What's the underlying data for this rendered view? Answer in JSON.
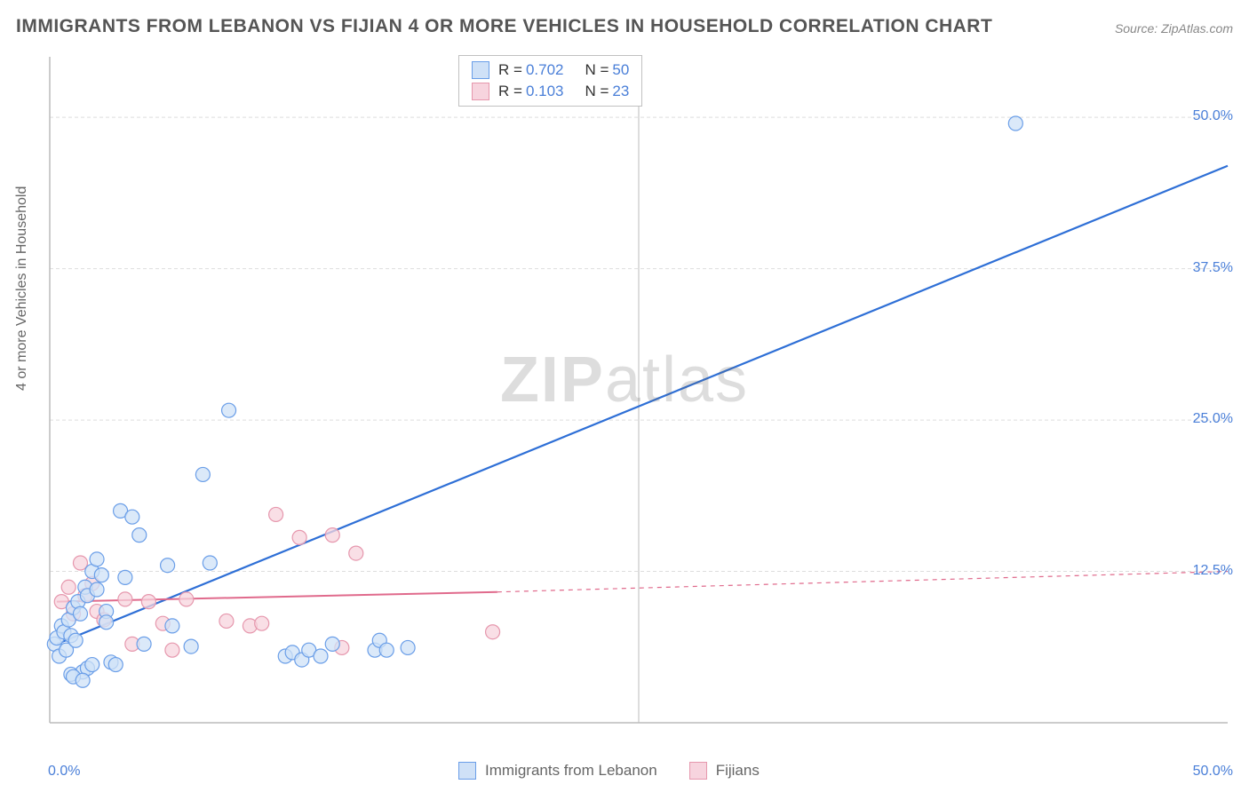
{
  "title": "IMMIGRANTS FROM LEBANON VS FIJIAN 4 OR MORE VEHICLES IN HOUSEHOLD CORRELATION CHART",
  "source": "Source: ZipAtlas.com",
  "watermark_bold": "ZIP",
  "watermark_light": "atlas",
  "y_axis_label": "4 or more Vehicles in Household",
  "chart": {
    "type": "scatter",
    "background_color": "#ffffff",
    "grid_color": "#dddddd",
    "axis_color": "#bbbbbb",
    "xlim": [
      0,
      50
    ],
    "ylim": [
      0,
      55
    ],
    "x_origin_label": "0.0%",
    "x_max_label": "50.0%",
    "x_tick_major": 25,
    "y_ticks": [
      {
        "v": 12.5,
        "label": "12.5%"
      },
      {
        "v": 25.0,
        "label": "25.0%"
      },
      {
        "v": 37.5,
        "label": "37.5%"
      },
      {
        "v": 50.0,
        "label": "50.0%"
      }
    ],
    "marker_radius": 8,
    "marker_stroke_width": 1.2,
    "series": [
      {
        "id": "lebanon",
        "name": "Immigrants from Lebanon",
        "fill": "#cfe1f7",
        "stroke": "#6a9ee8",
        "line_color": "#2e6fd6",
        "line_width": 2.2,
        "r": "0.702",
        "n": "50",
        "regression": {
          "x1": 0.3,
          "y1": 6.5,
          "x2": 50.0,
          "y2": 46.0,
          "dashed_from_x": 50.0
        },
        "points": [
          [
            0.2,
            6.5
          ],
          [
            0.3,
            7.0
          ],
          [
            0.5,
            8.0
          ],
          [
            0.6,
            7.5
          ],
          [
            0.4,
            5.5
          ],
          [
            0.7,
            6.0
          ],
          [
            0.8,
            8.5
          ],
          [
            0.9,
            7.2
          ],
          [
            1.0,
            9.5
          ],
          [
            1.1,
            6.8
          ],
          [
            1.2,
            10.0
          ],
          [
            1.3,
            9.0
          ],
          [
            1.5,
            11.2
          ],
          [
            1.6,
            10.5
          ],
          [
            1.8,
            12.5
          ],
          [
            2.0,
            11.0
          ],
          [
            2.0,
            13.5
          ],
          [
            2.2,
            12.2
          ],
          [
            2.4,
            9.2
          ],
          [
            1.4,
            4.2
          ],
          [
            1.6,
            4.5
          ],
          [
            1.8,
            4.8
          ],
          [
            2.4,
            8.3
          ],
          [
            2.6,
            5.0
          ],
          [
            2.8,
            4.8
          ],
          [
            3.0,
            17.5
          ],
          [
            3.5,
            17.0
          ],
          [
            3.2,
            12.0
          ],
          [
            3.8,
            15.5
          ],
          [
            4.0,
            6.5
          ],
          [
            5.0,
            13.0
          ],
          [
            5.2,
            8.0
          ],
          [
            6.0,
            6.3
          ],
          [
            6.5,
            20.5
          ],
          [
            6.8,
            13.2
          ],
          [
            7.6,
            25.8
          ],
          [
            10.0,
            5.5
          ],
          [
            10.3,
            5.8
          ],
          [
            10.7,
            5.2
          ],
          [
            11.0,
            6.0
          ],
          [
            11.5,
            5.5
          ],
          [
            12.0,
            6.5
          ],
          [
            13.8,
            6.0
          ],
          [
            14.0,
            6.8
          ],
          [
            14.3,
            6.0
          ],
          [
            15.2,
            6.2
          ],
          [
            0.9,
            4.0
          ],
          [
            1.0,
            3.8
          ],
          [
            1.4,
            3.5
          ],
          [
            41.0,
            49.5
          ]
        ]
      },
      {
        "id": "fijian",
        "name": "Fijians",
        "fill": "#f7d4de",
        "stroke": "#e697ad",
        "line_color": "#e06a8c",
        "line_width": 2.0,
        "r": "0.103",
        "n": "23",
        "regression": {
          "x1": 0.3,
          "y1": 10.0,
          "x2": 19.0,
          "y2": 10.8,
          "dashed_from_x": 19.0,
          "dash_x2": 50.0,
          "dash_y2": 12.5
        },
        "points": [
          [
            0.5,
            10.0
          ],
          [
            0.8,
            11.2
          ],
          [
            1.0,
            9.0
          ],
          [
            1.3,
            13.2
          ],
          [
            1.5,
            10.5
          ],
          [
            1.8,
            11.5
          ],
          [
            2.0,
            9.2
          ],
          [
            2.3,
            8.5
          ],
          [
            3.2,
            10.2
          ],
          [
            3.5,
            6.5
          ],
          [
            4.2,
            10.0
          ],
          [
            4.8,
            8.2
          ],
          [
            5.2,
            6.0
          ],
          [
            5.8,
            10.2
          ],
          [
            7.5,
            8.4
          ],
          [
            8.5,
            8.0
          ],
          [
            9.0,
            8.2
          ],
          [
            9.6,
            17.2
          ],
          [
            10.6,
            15.3
          ],
          [
            12.0,
            15.5
          ],
          [
            12.4,
            6.2
          ],
          [
            13.0,
            14.0
          ],
          [
            18.8,
            7.5
          ]
        ]
      }
    ]
  },
  "legend_top": {
    "rows": [
      {
        "swatch_fill": "#cfe1f7",
        "swatch_stroke": "#6a9ee8",
        "r": "0.702",
        "n": "50"
      },
      {
        "swatch_fill": "#f7d4de",
        "swatch_stroke": "#e697ad",
        "r": "0.103",
        "n": "23"
      }
    ]
  },
  "legend_bottom": {
    "items": [
      {
        "swatch_fill": "#cfe1f7",
        "swatch_stroke": "#6a9ee8",
        "label": "Immigrants from Lebanon"
      },
      {
        "swatch_fill": "#f7d4de",
        "swatch_stroke": "#e697ad",
        "label": "Fijians"
      }
    ]
  },
  "labels": {
    "r_prefix": "R  =",
    "n_prefix": "N  ="
  }
}
